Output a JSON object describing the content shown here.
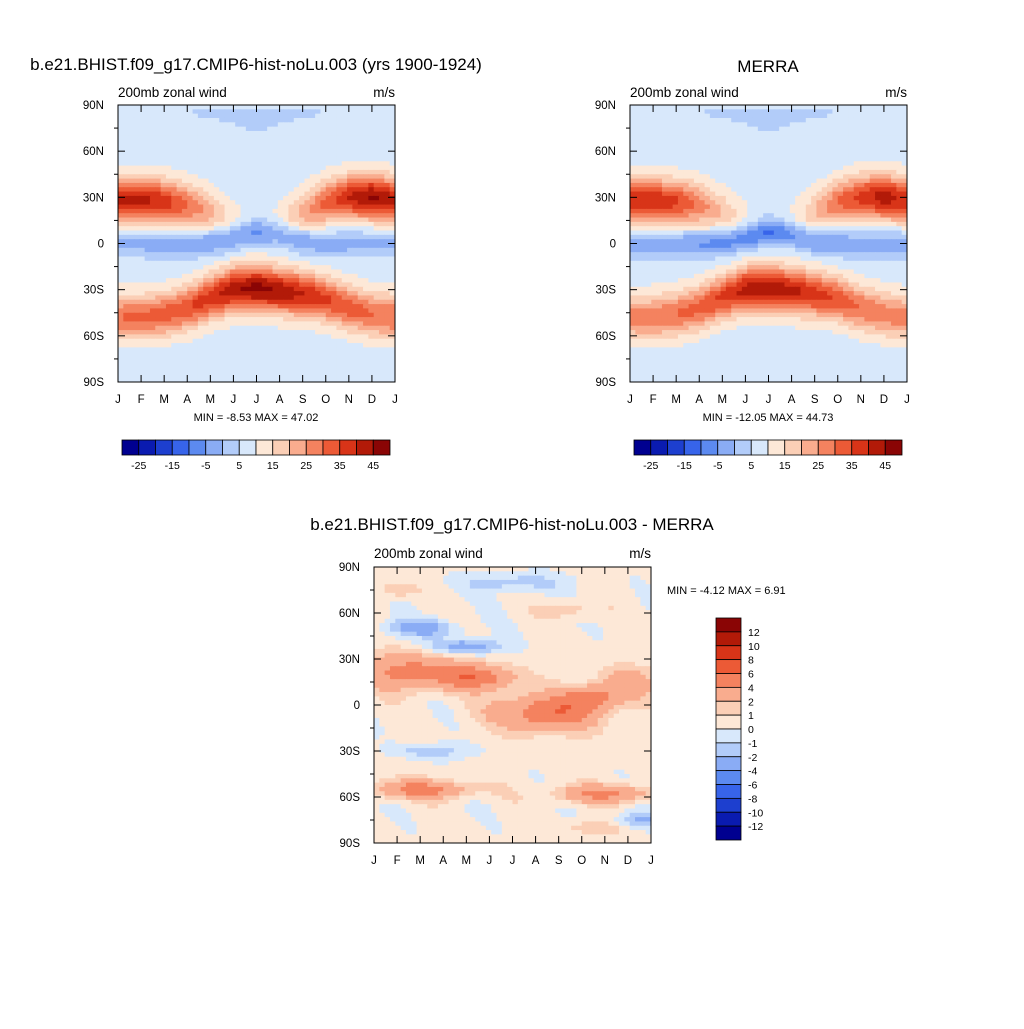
{
  "chart_data": [
    {
      "type": "heatmap",
      "title": "b.e21.BHIST.f09_g17.CMIP6-hist-noLu.003 (yrs 1900-1924)",
      "subtitle_left": "200mb zonal wind",
      "units": "m/s",
      "stats": "MIN =  -8.53 MAX =  47.02",
      "x_ticks": [
        "J",
        "F",
        "M",
        "A",
        "M",
        "J",
        "J",
        "A",
        "S",
        "O",
        "N",
        "D",
        "J"
      ],
      "y_ticks": [
        "90N",
        "60N",
        "30N",
        "0",
        "30S",
        "60S",
        "90S"
      ],
      "y_range": [
        -90,
        90
      ],
      "colorbar": {
        "labels": [
          "-25",
          "-15",
          "-5",
          "5",
          "15",
          "25",
          "35",
          "45"
        ],
        "colors": [
          "#000090",
          "#0a1bb0",
          "#1d3fcf",
          "#3764ea",
          "#5c8af0",
          "#8aacf5",
          "#b2ccf9",
          "#d8e8fb",
          "#fde8d7",
          "#fbcfb6",
          "#f9ac8e",
          "#f4825f",
          "#ec5a36",
          "#d83418",
          "#b21a08",
          "#8a0505"
        ]
      },
      "jets": [
        {
          "name": "north",
          "lat": [
            28,
            28,
            27,
            25,
            20,
            13,
            5,
            12,
            20,
            27,
            30,
            30,
            28
          ],
          "peak": [
            41,
            42,
            38,
            30,
            22,
            14,
            10,
            14,
            22,
            32,
            40,
            46,
            41
          ]
        },
        {
          "name": "south",
          "lat": [
            -48,
            -48,
            -46,
            -42,
            -35,
            -30,
            -29,
            -31,
            -33,
            -36,
            -42,
            -46,
            -48
          ],
          "peak": [
            30,
            31,
            32,
            34,
            38,
            44,
            47,
            44,
            40,
            36,
            33,
            30,
            30
          ]
        }
      ],
      "tropics": {
        "lat": [
          0,
          0,
          0,
          0,
          1,
          4,
          7,
          6,
          2,
          0,
          0,
          0,
          0
        ],
        "peak": [
          -2,
          -2,
          -3,
          -4,
          -6,
          -8,
          -8.5,
          -7,
          -5,
          -3,
          -2,
          -2,
          -2
        ]
      }
    },
    {
      "type": "heatmap",
      "title": "MERRA",
      "subtitle_left": "200mb zonal wind",
      "units": "m/s",
      "stats": "MIN = -12.05 MAX =  44.73",
      "x_ticks": [
        "J",
        "F",
        "M",
        "A",
        "M",
        "J",
        "J",
        "A",
        "S",
        "O",
        "N",
        "D",
        "J"
      ],
      "y_ticks": [
        "90N",
        "60N",
        "30N",
        "0",
        "30S",
        "60S",
        "90S"
      ],
      "y_range": [
        -90,
        90
      ],
      "colorbar": {
        "labels": [
          "-25",
          "-15",
          "-5",
          "5",
          "15",
          "25",
          "35",
          "45"
        ],
        "colors": [
          "#000090",
          "#0a1bb0",
          "#1d3fcf",
          "#3764ea",
          "#5c8af0",
          "#8aacf5",
          "#b2ccf9",
          "#d8e8fb",
          "#fde8d7",
          "#fbcfb6",
          "#f9ac8e",
          "#f4825f",
          "#ec5a36",
          "#d83418",
          "#b21a08",
          "#8a0505"
        ]
      },
      "jets": [
        {
          "name": "north",
          "lat": [
            28,
            28,
            27,
            25,
            20,
            13,
            5,
            12,
            20,
            27,
            30,
            30,
            28
          ],
          "peak": [
            38,
            39,
            36,
            28,
            20,
            13,
            9,
            13,
            20,
            30,
            37,
            43,
            38
          ]
        },
        {
          "name": "south",
          "lat": [
            -48,
            -48,
            -46,
            -42,
            -35,
            -30,
            -29,
            -31,
            -33,
            -36,
            -42,
            -46,
            -48
          ],
          "peak": [
            27,
            28,
            30,
            32,
            36,
            42,
            44,
            42,
            38,
            34,
            30,
            28,
            27
          ]
        }
      ],
      "tropics": {
        "lat": [
          0,
          0,
          0,
          0,
          1,
          4,
          7,
          6,
          2,
          0,
          0,
          0,
          0
        ],
        "peak": [
          -3,
          -3,
          -4,
          -6,
          -8,
          -11,
          -12,
          -10,
          -7,
          -4,
          -3,
          -3,
          -3
        ]
      }
    },
    {
      "type": "heatmap",
      "title": "b.e21.BHIST.f09_g17.CMIP6-hist-noLu.003 - MERRA",
      "subtitle_left": "200mb zonal wind",
      "units": "m/s",
      "stats": "MIN =  -4.12 MAX =   6.91",
      "x_ticks": [
        "J",
        "F",
        "M",
        "A",
        "M",
        "J",
        "J",
        "A",
        "S",
        "O",
        "N",
        "D",
        "J"
      ],
      "y_ticks": [
        "90N",
        "60N",
        "30N",
        "0",
        "30S",
        "60S",
        "90S"
      ],
      "y_range": [
        -90,
        90
      ],
      "colorbar": {
        "labels": [
          "12",
          "10",
          "8",
          "6",
          "4",
          "2",
          "1",
          "0",
          "-1",
          "-2",
          "-4",
          "-6",
          "-8",
          "-10",
          "-12"
        ],
        "colors": [
          "#8a0505",
          "#b21a08",
          "#d83418",
          "#ec5a36",
          "#f4825f",
          "#f9ac8e",
          "#fbcfb6",
          "#fde8d7",
          "#d8e8fb",
          "#b2ccf9",
          "#8aacf5",
          "#5c8af0",
          "#3764ea",
          "#1d3fcf",
          "#0a1bb0",
          "#000090"
        ]
      },
      "anomalies": [
        {
          "m": 1.5,
          "lat": 22,
          "v": 4.5,
          "sm": 2.2,
          "sl": 12
        },
        {
          "m": 4.5,
          "lat": 18,
          "v": 5,
          "sm": 1.6,
          "sl": 8
        },
        {
          "m": 7.5,
          "lat": -5,
          "v": 5.5,
          "sm": 2.2,
          "sl": 12
        },
        {
          "m": 9.5,
          "lat": 5,
          "v": 4,
          "sm": 1.2,
          "sl": 8
        },
        {
          "m": 11,
          "lat": 15,
          "v": 3,
          "sm": 1.2,
          "sl": 10
        },
        {
          "m": 2,
          "lat": -55,
          "v": 4.5,
          "sm": 2.2,
          "sl": 6
        },
        {
          "m": 10,
          "lat": -58,
          "v": 4,
          "sm": 2.2,
          "sl": 6
        },
        {
          "m": 2,
          "lat": 50,
          "v": -3,
          "sm": 1.6,
          "sl": 6
        },
        {
          "m": 4,
          "lat": 38,
          "v": -3.5,
          "sm": 1.6,
          "sl": 5
        },
        {
          "m": 6,
          "lat": 80,
          "v": -2,
          "sm": 2.2,
          "sl": 6
        },
        {
          "m": 2.5,
          "lat": -30,
          "v": -2,
          "sm": 1.6,
          "sl": 5
        },
        {
          "m": 11.5,
          "lat": -75,
          "v": -2.5,
          "sm": 1.2,
          "sl": 6
        },
        {
          "m": 9.5,
          "lat": -80,
          "v": 1.5,
          "sm": 1.6,
          "sl": 6
        },
        {
          "m": 1,
          "lat": 75,
          "v": 2,
          "sm": 0.8,
          "sl": 5
        },
        {
          "m": 8.5,
          "lat": 62,
          "v": 1.5,
          "sm": 1.2,
          "sl": 6
        }
      ]
    }
  ]
}
